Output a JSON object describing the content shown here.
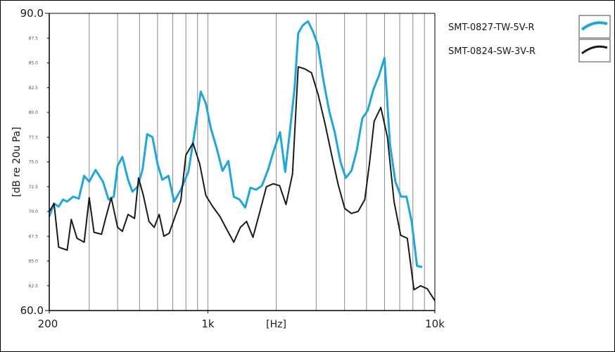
{
  "chart_data": {
    "type": "line",
    "xscale": "log",
    "xlim": [
      200,
      10000
    ],
    "ylim": [
      60,
      90
    ],
    "ylabel": "[dB re 20u Pa]",
    "xlabel": "[Hz]",
    "grid": {
      "x": true,
      "y": false
    },
    "legend_position": "top-right",
    "y_major_ticks": [
      {
        "value": 60,
        "label": "60.0"
      },
      {
        "value": 90,
        "label": "90.0"
      }
    ],
    "y_minor_ticks": [
      {
        "value": 62.5,
        "label": "62.5"
      },
      {
        "value": 65,
        "label": "65.0"
      },
      {
        "value": 67.5,
        "label": "67.5"
      },
      {
        "value": 70,
        "label": "70.0"
      },
      {
        "value": 72.5,
        "label": "72.5"
      },
      {
        "value": 75,
        "label": "75.0"
      },
      {
        "value": 77.5,
        "label": "77.5"
      },
      {
        "value": 80,
        "label": "80.0"
      },
      {
        "value": 82.5,
        "label": "82.5"
      },
      {
        "value": 85,
        "label": "85.0"
      },
      {
        "value": 87.5,
        "label": "87.5"
      }
    ],
    "x_ticks": [
      {
        "value": 200,
        "label": "200"
      },
      {
        "value": 1000,
        "label": "1k"
      },
      {
        "value": 10000,
        "label": "10k"
      }
    ],
    "series": [
      {
        "name": "SMT-0827-TW-5V-R",
        "color": "#1da7df",
        "points": [
          [
            200,
            69.5
          ],
          [
            210,
            70.8
          ],
          [
            220,
            70.5
          ],
          [
            230,
            71.2
          ],
          [
            240,
            71.0
          ],
          [
            255,
            71.5
          ],
          [
            270,
            71.3
          ],
          [
            285,
            73.6
          ],
          [
            300,
            73.0
          ],
          [
            320,
            74.2
          ],
          [
            345,
            73.0
          ],
          [
            365,
            71.2
          ],
          [
            385,
            71.5
          ],
          [
            400,
            74.6
          ],
          [
            420,
            75.5
          ],
          [
            445,
            73.2
          ],
          [
            465,
            72.0
          ],
          [
            490,
            72.5
          ],
          [
            515,
            74.2
          ],
          [
            540,
            77.8
          ],
          [
            570,
            77.5
          ],
          [
            600,
            74.8
          ],
          [
            630,
            73.2
          ],
          [
            670,
            73.6
          ],
          [
            710,
            71.0
          ],
          [
            760,
            72.2
          ],
          [
            820,
            74.0
          ],
          [
            880,
            78.4
          ],
          [
            930,
            82.1
          ],
          [
            980,
            80.9
          ],
          [
            1030,
            78.4
          ],
          [
            1090,
            76.5
          ],
          [
            1160,
            74.1
          ],
          [
            1230,
            75.1
          ],
          [
            1300,
            71.5
          ],
          [
            1380,
            71.2
          ],
          [
            1460,
            70.4
          ],
          [
            1540,
            72.4
          ],
          [
            1630,
            72.2
          ],
          [
            1730,
            72.6
          ],
          [
            1840,
            74.2
          ],
          [
            1960,
            76.3
          ],
          [
            2080,
            78.0
          ],
          [
            2190,
            74.0
          ],
          [
            2290,
            77.8
          ],
          [
            2410,
            82.5
          ],
          [
            2500,
            88.0
          ],
          [
            2620,
            88.8
          ],
          [
            2760,
            89.2
          ],
          [
            2900,
            88.2
          ],
          [
            3050,
            86.8
          ],
          [
            3230,
            83.2
          ],
          [
            3420,
            80.2
          ],
          [
            3620,
            78.0
          ],
          [
            3840,
            75.0
          ],
          [
            4050,
            73.4
          ],
          [
            4290,
            74.1
          ],
          [
            4530,
            76.2
          ],
          [
            4790,
            79.4
          ],
          [
            5060,
            80.2
          ],
          [
            5360,
            82.3
          ],
          [
            5670,
            83.7
          ],
          [
            6000,
            85.5
          ],
          [
            6340,
            76.8
          ],
          [
            6700,
            73.0
          ],
          [
            7100,
            71.5
          ],
          [
            7500,
            71.5
          ],
          [
            7900,
            69.0
          ],
          [
            8350,
            64.5
          ],
          [
            8800,
            64.4
          ]
        ]
      },
      {
        "name": "SMT-0824-SW-3V-R",
        "color": "#1a1a1a",
        "points": [
          [
            200,
            70.0
          ],
          [
            210,
            70.8
          ],
          [
            220,
            66.4
          ],
          [
            240,
            66.1
          ],
          [
            250,
            69.2
          ],
          [
            265,
            67.3
          ],
          [
            285,
            66.9
          ],
          [
            300,
            71.4
          ],
          [
            315,
            67.9
          ],
          [
            340,
            67.7
          ],
          [
            355,
            69.4
          ],
          [
            375,
            71.4
          ],
          [
            400,
            68.4
          ],
          [
            420,
            68.0
          ],
          [
            445,
            69.7
          ],
          [
            475,
            69.3
          ],
          [
            495,
            73.4
          ],
          [
            520,
            71.6
          ],
          [
            550,
            69.0
          ],
          [
            580,
            68.4
          ],
          [
            610,
            69.7
          ],
          [
            640,
            67.5
          ],
          [
            675,
            67.8
          ],
          [
            720,
            69.6
          ],
          [
            760,
            71.1
          ],
          [
            800,
            75.7
          ],
          [
            860,
            76.9
          ],
          [
            920,
            74.8
          ],
          [
            980,
            71.6
          ],
          [
            1050,
            70.5
          ],
          [
            1130,
            69.5
          ],
          [
            1210,
            68.2
          ],
          [
            1300,
            66.9
          ],
          [
            1390,
            68.4
          ],
          [
            1480,
            69.0
          ],
          [
            1580,
            67.4
          ],
          [
            1690,
            69.9
          ],
          [
            1810,
            72.5
          ],
          [
            1940,
            72.8
          ],
          [
            2070,
            72.6
          ],
          [
            2210,
            70.7
          ],
          [
            2360,
            73.8
          ],
          [
            2500,
            84.6
          ],
          [
            2670,
            84.4
          ],
          [
            2860,
            84.0
          ],
          [
            3060,
            81.8
          ],
          [
            3280,
            78.9
          ],
          [
            3510,
            75.7
          ],
          [
            3750,
            72.7
          ],
          [
            4010,
            70.3
          ],
          [
            4290,
            69.8
          ],
          [
            4590,
            70.0
          ],
          [
            4910,
            71.2
          ],
          [
            5150,
            74.8
          ],
          [
            5400,
            79.1
          ],
          [
            5780,
            80.5
          ],
          [
            6180,
            77.5
          ],
          [
            6610,
            71.0
          ],
          [
            7070,
            67.6
          ],
          [
            7560,
            67.3
          ],
          [
            8090,
            62.1
          ],
          [
            8650,
            62.5
          ],
          [
            9260,
            62.2
          ],
          [
            10000,
            61.0
          ]
        ]
      }
    ]
  }
}
